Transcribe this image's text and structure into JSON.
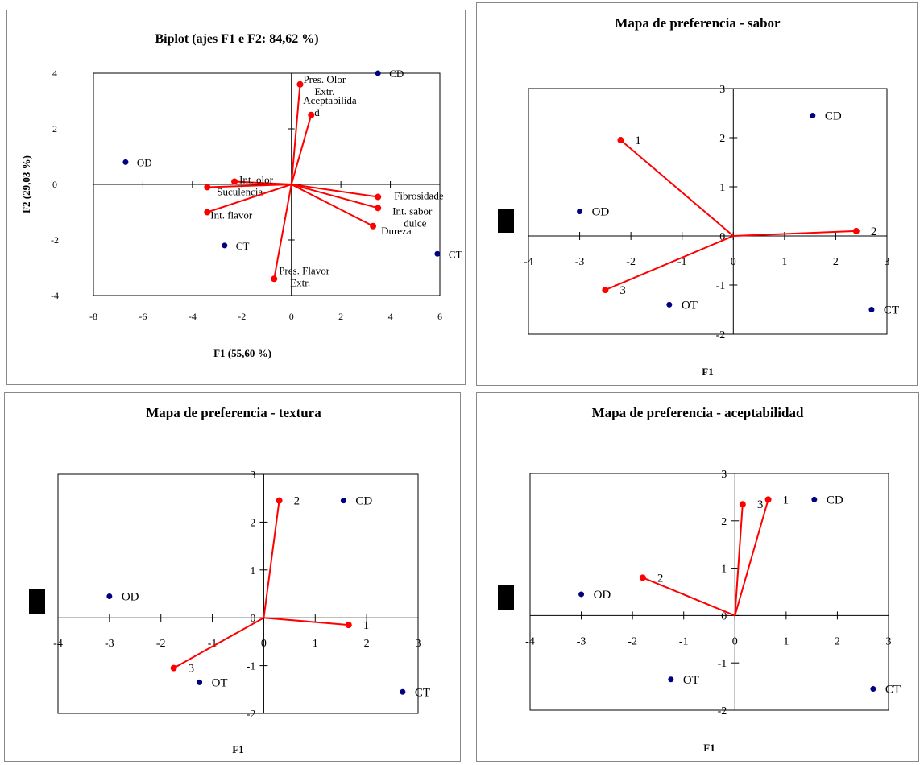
{
  "colors": {
    "observation": "#000080",
    "vector": "#ff0000",
    "axis": "#000000"
  },
  "chart_data": [
    {
      "id": "biplot",
      "type": "scatter",
      "title": "Biplot (ajes F1 e F2: 84,62 %)",
      "xlabel": "F1 (55,60 %)",
      "ylabel": "F2 (29,03 %)",
      "xlim": [
        -8,
        6
      ],
      "ylim": [
        -4,
        4
      ],
      "xticks": [
        "-8",
        "-6",
        "-4",
        "-2",
        "0",
        "2",
        "4",
        "6"
      ],
      "yticks": [
        "4",
        "2",
        "0",
        "-2",
        "-4"
      ],
      "observations": [
        {
          "label": "CD",
          "x": 3.5,
          "y": 4.0
        },
        {
          "label": "OD",
          "x": -6.7,
          "y": 0.8
        },
        {
          "label": "CT",
          "x": -2.7,
          "y": -2.2
        },
        {
          "label": "CT",
          "x": 5.9,
          "y": -2.5
        }
      ],
      "variables": [
        {
          "label": "Pres. Olor Extr.",
          "x": 0.35,
          "y": 3.6
        },
        {
          "label": "Aceptabilida d",
          "x": 0.8,
          "y": 2.5
        },
        {
          "label": "Int. olor",
          "x": -2.3,
          "y": 0.1
        },
        {
          "label": "Suculencia",
          "x": -3.4,
          "y": -0.1
        },
        {
          "label": "Int. flavor",
          "x": -3.4,
          "y": -1.0
        },
        {
          "label": "Fibrosidade",
          "x": 3.5,
          "y": -0.45
        },
        {
          "label": "Int. sabor dulce",
          "x": 3.5,
          "y": -0.85
        },
        {
          "label": "Dureza",
          "x": 3.3,
          "y": -1.5
        },
        {
          "label": "Pres. Flavor Extr.",
          "x": -0.7,
          "y": -3.4
        }
      ]
    },
    {
      "id": "sabor",
      "type": "scatter",
      "title": "Mapa de preferencia - sabor",
      "xlabel": "F1",
      "xlim": [
        -4,
        3
      ],
      "ylim": [
        -2,
        3
      ],
      "xticks": [
        "-4",
        "-3",
        "-2",
        "-1",
        "0",
        "1",
        "2",
        "3"
      ],
      "yticks": [
        "3",
        "2",
        "1",
        "0",
        "-1",
        "-2"
      ],
      "observations": [
        {
          "label": "CD",
          "x": 1.55,
          "y": 2.45
        },
        {
          "label": "OD",
          "x": -3.0,
          "y": 0.5
        },
        {
          "label": "OT",
          "x": -1.25,
          "y": -1.4
        },
        {
          "label": "CT",
          "x": 2.7,
          "y": -1.5
        }
      ],
      "vectors": [
        {
          "label": "1",
          "x": -2.2,
          "y": 1.95
        },
        {
          "label": "2",
          "x": 2.4,
          "y": 0.1
        },
        {
          "label": "3",
          "x": -2.5,
          "y": -1.1
        }
      ]
    },
    {
      "id": "textura",
      "type": "scatter",
      "title": "Mapa de preferencia - textura",
      "xlabel": "F1",
      "xlim": [
        -4,
        3
      ],
      "ylim": [
        -2,
        3
      ],
      "xticks": [
        "-4",
        "-3",
        "-2",
        "-1",
        "0",
        "1",
        "2",
        "3"
      ],
      "yticks": [
        "3",
        "2",
        "1",
        "0",
        "-1",
        "-2"
      ],
      "observations": [
        {
          "label": "CD",
          "x": 1.55,
          "y": 2.45
        },
        {
          "label": "OD",
          "x": -3.0,
          "y": 0.45
        },
        {
          "label": "OT",
          "x": -1.25,
          "y": -1.35
        },
        {
          "label": "CT",
          "x": 2.7,
          "y": -1.55
        }
      ],
      "vectors": [
        {
          "label": "2",
          "x": 0.3,
          "y": 2.45
        },
        {
          "label": "1",
          "x": 1.65,
          "y": -0.15
        },
        {
          "label": "3",
          "x": -1.75,
          "y": -1.05
        }
      ]
    },
    {
      "id": "aceptabilidad",
      "type": "scatter",
      "title": "Mapa de preferencia - aceptabilidad",
      "xlabel": "F1",
      "xlim": [
        -4,
        3
      ],
      "ylim": [
        -2,
        3
      ],
      "xticks": [
        "-4",
        "-3",
        "-2",
        "-1",
        "0",
        "1",
        "2",
        "3"
      ],
      "yticks": [
        "3",
        "2",
        "1",
        "0",
        "-1",
        "-2"
      ],
      "observations": [
        {
          "label": "CD",
          "x": 1.55,
          "y": 2.45
        },
        {
          "label": "OD",
          "x": -3.0,
          "y": 0.45
        },
        {
          "label": "OT",
          "x": -1.25,
          "y": -1.35
        },
        {
          "label": "CT",
          "x": 2.7,
          "y": -1.55
        }
      ],
      "vectors": [
        {
          "label": "3",
          "x": 0.15,
          "y": 2.35
        },
        {
          "label": "1",
          "x": 0.65,
          "y": 2.45
        },
        {
          "label": "2",
          "x": -1.8,
          "y": 0.8
        }
      ]
    }
  ]
}
